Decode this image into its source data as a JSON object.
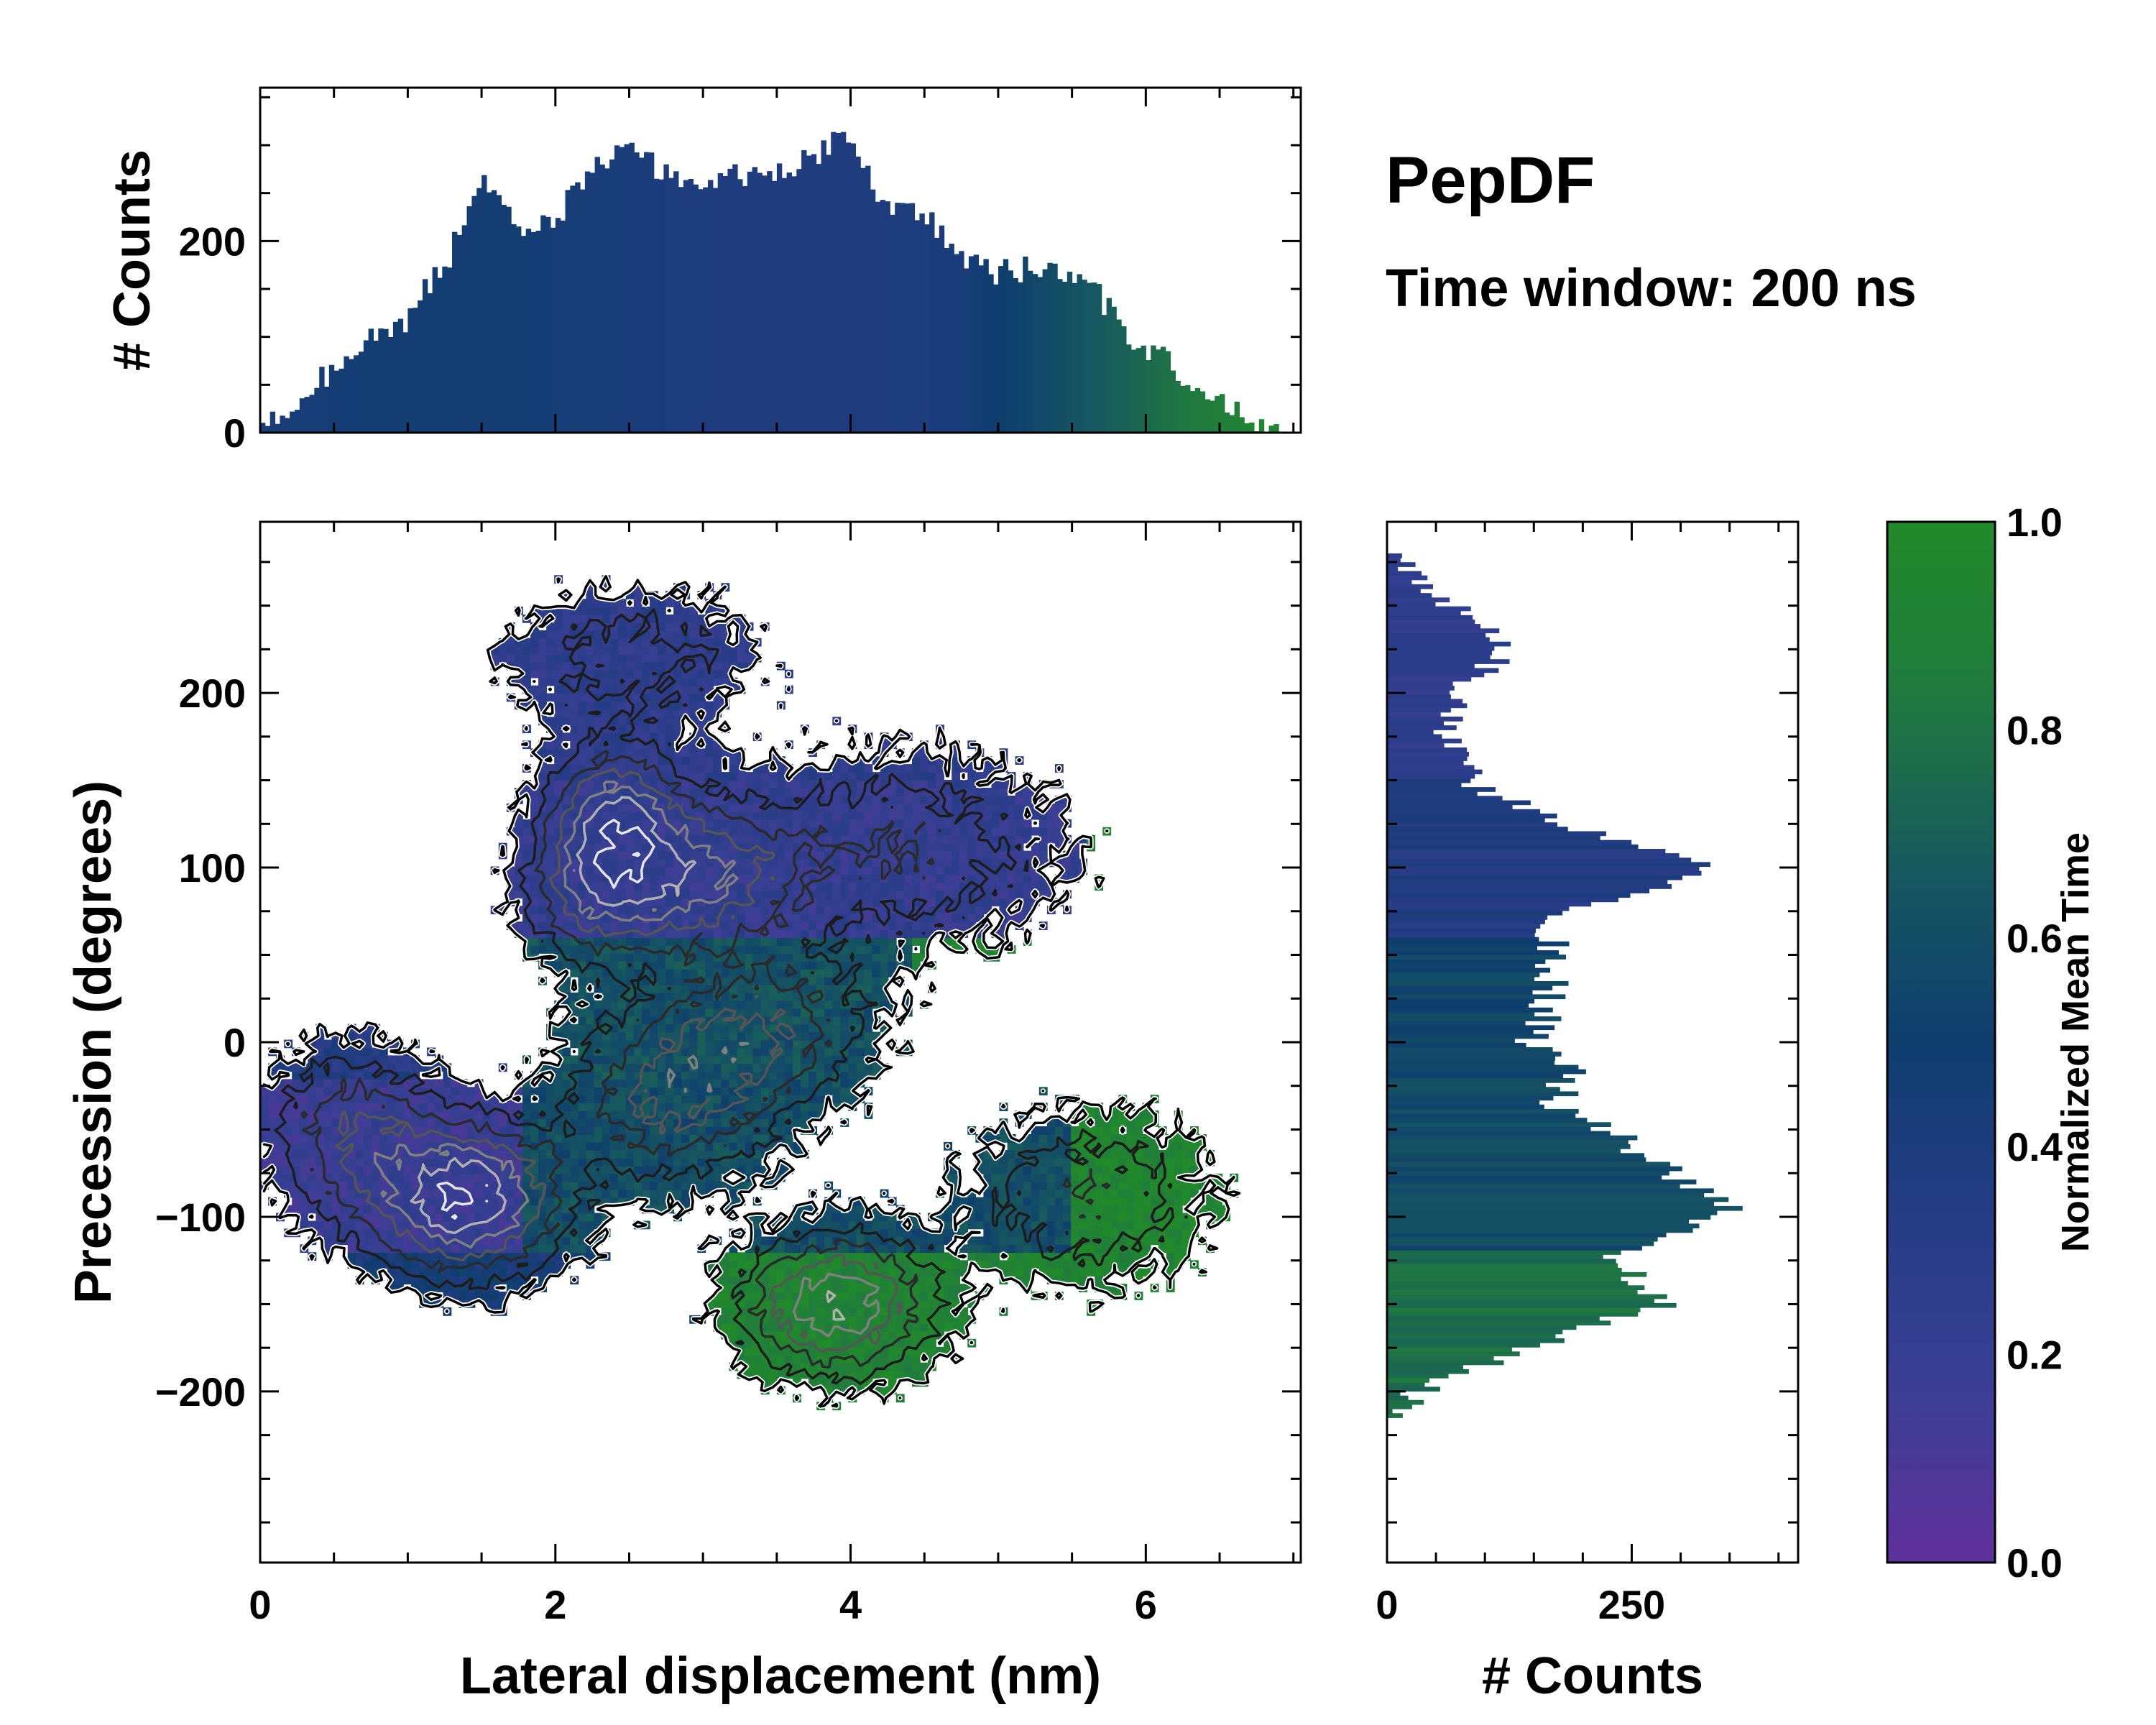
{
  "chart_data": {
    "type": "joint-heatmap",
    "title": "PepDF",
    "subtitle": "Time window: 200 ns",
    "main": {
      "type": "heatmap",
      "xlabel": "Lateral displacement (nm)",
      "ylabel": "Precession (degrees)",
      "xlim": [
        0,
        7.05
      ],
      "ylim": [
        -298,
        298
      ],
      "xticks": [
        0,
        2,
        4,
        6
      ],
      "yticks": [
        -200,
        -100,
        0,
        100,
        200
      ],
      "xtick_labels": [
        "0",
        "2",
        "4",
        "6"
      ],
      "ytick_labels": [
        "−200",
        "−100",
        "0",
        "100",
        "200"
      ],
      "clusters": [
        {
          "x": 1.4,
          "y": -90,
          "sx": 0.45,
          "sy": 30,
          "w": 1.0
        },
        {
          "x": 2.3,
          "y": 90,
          "sx": 0.35,
          "sy": 30,
          "w": 0.7
        },
        {
          "x": 2.4,
          "y": 135,
          "sx": 0.3,
          "sy": 25,
          "w": 0.6
        },
        {
          "x": 3.0,
          "y": 95,
          "sx": 0.4,
          "sy": 28,
          "w": 0.6
        },
        {
          "x": 3.9,
          "y": -150,
          "sx": 0.45,
          "sy": 28,
          "w": 0.85
        },
        {
          "x": 2.8,
          "y": -30,
          "sx": 0.5,
          "sy": 35,
          "w": 0.6
        },
        {
          "x": 3.5,
          "y": 10,
          "sx": 0.5,
          "sy": 30,
          "w": 0.45
        },
        {
          "x": 4.3,
          "y": 110,
          "sx": 0.8,
          "sy": 40,
          "w": 0.4
        },
        {
          "x": 5.6,
          "y": -90,
          "sx": 0.6,
          "sy": 35,
          "w": 0.4
        },
        {
          "x": 2.5,
          "y": 220,
          "sx": 0.6,
          "sy": 30,
          "w": 0.35
        },
        {
          "x": 0.6,
          "y": -50,
          "sx": 0.4,
          "sy": 35,
          "w": 0.5
        }
      ]
    },
    "top_histogram": {
      "type": "bar",
      "ylabel": "# Counts",
      "ylim": [
        0,
        360
      ],
      "yticks": [
        0,
        200
      ],
      "ytick_labels": [
        "0",
        "200"
      ],
      "anchors_x": [
        0,
        0.3,
        0.6,
        1.0,
        1.3,
        1.5,
        1.8,
        2.0,
        2.2,
        2.5,
        2.8,
        3.2,
        3.5,
        3.8,
        3.95,
        4.2,
        4.5,
        4.8,
        5.0,
        5.1,
        5.3,
        5.6,
        5.9,
        6.1,
        6.4,
        6.7,
        7.0
      ],
      "anchors_y": [
        5,
        40,
        80,
        120,
        190,
        265,
        205,
        225,
        265,
        300,
        265,
        270,
        270,
        295,
        320,
        245,
        225,
        175,
        165,
        170,
        172,
        160,
        100,
        80,
        45,
        10,
        2
      ]
    },
    "right_histogram": {
      "type": "bar",
      "xlabel": "# Counts",
      "xlim": [
        0,
        420
      ],
      "xticks": [
        0,
        250
      ],
      "xtick_labels": [
        "0",
        "250"
      ],
      "anchors_y": [
        -215,
        -200,
        -180,
        -165,
        -150,
        -140,
        -125,
        -105,
        -95,
        -75,
        -55,
        -35,
        -15,
        0,
        25,
        55,
        70,
        85,
        100,
        120,
        145,
        170,
        200,
        225,
        255,
        280,
        290
      ],
      "anchors_x": [
        0,
        30,
        120,
        200,
        280,
        270,
        220,
        320,
        350,
        290,
        240,
        170,
        190,
        150,
        165,
        170,
        165,
        250,
        335,
        205,
        95,
        60,
        65,
        130,
        50,
        10,
        0
      ]
    },
    "colorbar": {
      "label": "Normalized Mean Time",
      "range": [
        0,
        1
      ],
      "ticks": [
        0.0,
        0.2,
        0.4,
        0.6,
        0.8,
        1.0
      ],
      "tick_labels": [
        "0.0",
        "0.2",
        "0.4",
        "0.6",
        "0.8",
        "1.0"
      ],
      "colors": [
        "#5f2f99",
        "#3a3f94",
        "#253c85",
        "#0e3d6e",
        "#17585f",
        "#207a3e",
        "#218a2a"
      ]
    }
  }
}
